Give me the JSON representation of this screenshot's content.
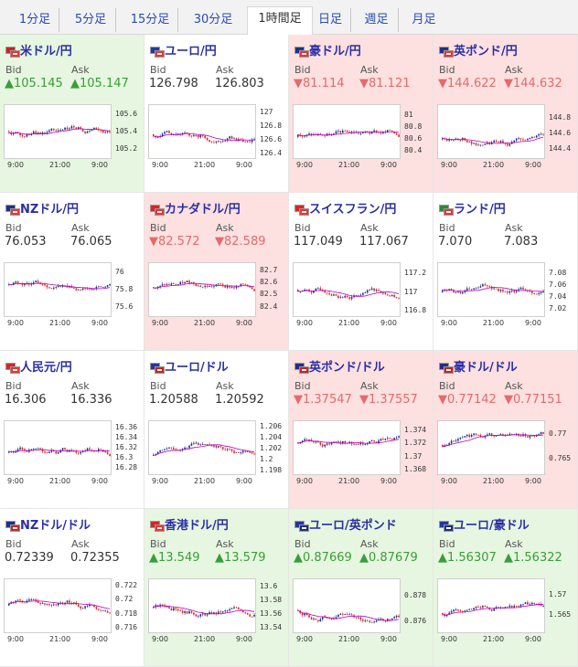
{
  "tabs": [
    "1分足",
    "5分足",
    "15分足",
    "30分足",
    "1時間足",
    "日足",
    "週足",
    "月足"
  ],
  "active_tab": 4,
  "colors": {
    "up_bg": "#e7f6e0",
    "down_bg": "#fde0e0",
    "up_text": "#3a9d3a",
    "down_text": "#e36b6b",
    "title": "#2a2fa5",
    "candle_up": "#1a2c8c",
    "candle_down": "#e02020",
    "ma": "#bb00bb"
  },
  "common": {
    "bid": "Bid",
    "ask": "Ask",
    "x_ticks": [
      "9:00",
      "21:00",
      "9:00"
    ]
  },
  "pairs": [
    {
      "title": "米ドル/円",
      "flag": "us-jp",
      "dir": "up",
      "bid": "105.145",
      "ask": "105.147",
      "y_ticks": [
        "105.6",
        "105.4",
        "105.2"
      ],
      "ylim": [
        105.1,
        105.7
      ],
      "seed": 1
    },
    {
      "title": "ユーロ/円",
      "flag": "eu-jp",
      "dir": "neutral",
      "bid": "126.798",
      "ask": "126.803",
      "y_ticks": [
        "127",
        "126.8",
        "126.6",
        "126.4"
      ],
      "ylim": [
        126.35,
        127.1
      ],
      "seed": 2
    },
    {
      "title": "豪ドル/円",
      "flag": "au-jp",
      "dir": "down",
      "bid": "81.114",
      "ask": "81.121",
      "y_ticks": [
        "81",
        "80.8",
        "80.6",
        "80.4"
      ],
      "ylim": [
        80.3,
        81.15
      ],
      "seed": 3
    },
    {
      "title": "英ポンド/円",
      "flag": "gb-jp",
      "dir": "down",
      "bid": "144.622",
      "ask": "144.632",
      "y_ticks": [
        "144.8",
        "144.6",
        "144.4"
      ],
      "ylim": [
        144.3,
        144.95
      ],
      "seed": 4
    },
    {
      "title": "NZドル/円",
      "flag": "nz-jp",
      "dir": "neutral",
      "bid": "76.053",
      "ask": "76.065",
      "y_ticks": [
        "76",
        "75.8",
        "75.6"
      ],
      "ylim": [
        75.5,
        76.1
      ],
      "seed": 5
    },
    {
      "title": "カナダドル/円",
      "flag": "ca-jp",
      "dir": "down",
      "bid": "82.572",
      "ask": "82.589",
      "y_ticks": [
        "82.7",
        "82.6",
        "82.5",
        "82.4"
      ],
      "ylim": [
        82.33,
        82.75
      ],
      "seed": 6
    },
    {
      "title": "スイスフラン/円",
      "flag": "ch-jp",
      "dir": "neutral",
      "bid": "117.049",
      "ask": "117.067",
      "y_ticks": [
        "117.2",
        "117",
        "116.8"
      ],
      "ylim": [
        116.75,
        117.3
      ],
      "seed": 7
    },
    {
      "title": "ランド/円",
      "flag": "za-jp",
      "dir": "neutral",
      "bid": "7.070",
      "ask": "7.083",
      "y_ticks": [
        "7.08",
        "7.06",
        "7.04",
        "7.02"
      ],
      "ylim": [
        7.01,
        7.095
      ],
      "seed": 8
    },
    {
      "title": "人民元/円",
      "flag": "cn-jp",
      "dir": "neutral",
      "bid": "16.306",
      "ask": "16.336",
      "y_ticks": [
        "16.36",
        "16.34",
        "16.32",
        "16.3",
        "16.28"
      ],
      "ylim": [
        16.27,
        16.37
      ],
      "seed": 9
    },
    {
      "title": "ユーロ/ドル",
      "flag": "eu-us",
      "dir": "neutral",
      "bid": "1.20588",
      "ask": "1.20592",
      "y_ticks": [
        "1.206",
        "1.204",
        "1.202",
        "1.2",
        "1.198"
      ],
      "ylim": [
        1.1975,
        1.2068
      ],
      "seed": 10
    },
    {
      "title": "英ポンド/ドル",
      "flag": "gb-us",
      "dir": "down",
      "bid": "1.37547",
      "ask": "1.37557",
      "y_ticks": [
        "1.374",
        "1.372",
        "1.37",
        "1.368"
      ],
      "ylim": [
        1.3675,
        1.3752
      ],
      "seed": 11
    },
    {
      "title": "豪ドル/ドル",
      "flag": "au-us",
      "dir": "down",
      "bid": "0.77142",
      "ask": "0.77151",
      "y_ticks": [
        "0.77",
        "0.765"
      ],
      "ylim": [
        0.762,
        0.7725
      ],
      "seed": 12
    },
    {
      "title": "NZドル/ドル",
      "flag": "nz-us",
      "dir": "neutral",
      "bid": "0.72339",
      "ask": "0.72355",
      "y_ticks": [
        "0.722",
        "0.72",
        "0.718",
        "0.716"
      ],
      "ylim": [
        0.7155,
        0.7228
      ],
      "seed": 13
    },
    {
      "title": "香港ドル/円",
      "flag": "hk-jp",
      "dir": "up",
      "bid": "13.549",
      "ask": "13.579",
      "y_ticks": [
        "13.6",
        "13.58",
        "13.56",
        "13.54"
      ],
      "ylim": [
        13.535,
        13.61
      ],
      "seed": 14
    },
    {
      "title": "ユーロ/英ポンド",
      "flag": "eu-gb",
      "dir": "up",
      "bid": "0.87669",
      "ask": "0.87679",
      "y_ticks": [
        "0.878",
        "0.876"
      ],
      "ylim": [
        0.8752,
        0.8792
      ],
      "seed": 15
    },
    {
      "title": "ユーロ/豪ドル",
      "flag": "eu-au",
      "dir": "up",
      "bid": "1.56307",
      "ask": "1.56322",
      "y_ticks": [
        "1.57",
        "1.565"
      ],
      "ylim": [
        1.561,
        1.5735
      ],
      "seed": 16
    }
  ]
}
